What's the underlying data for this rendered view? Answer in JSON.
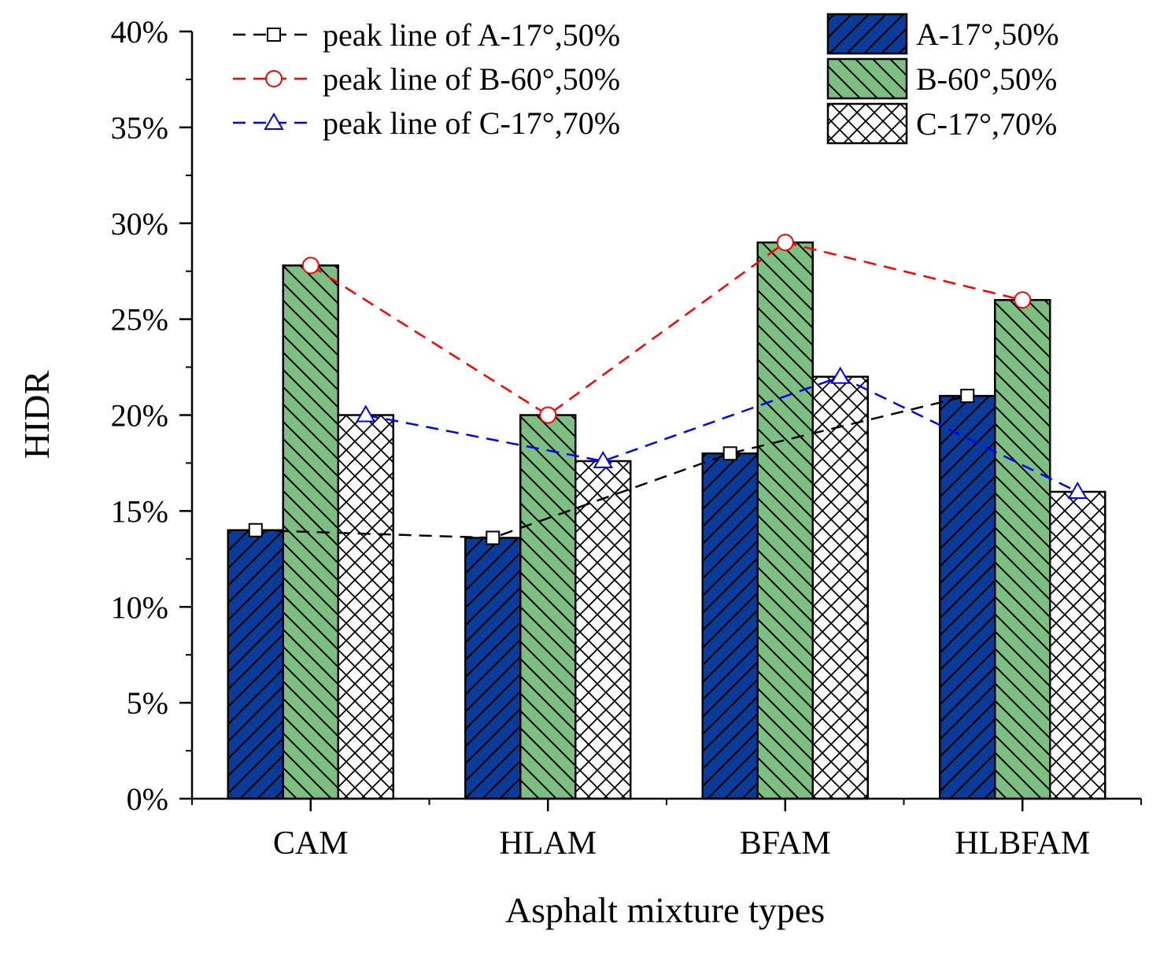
{
  "chart_data": {
    "type": "bar",
    "xlabel": "Asphalt mixture types",
    "ylabel": "HIDR",
    "ylim": [
      0,
      40
    ],
    "ytick_labels": [
      "0%",
      "5%",
      "10%",
      "15%",
      "20%",
      "25%",
      "30%",
      "35%",
      "40%"
    ],
    "categories": [
      "CAM",
      "HLAM",
      "BFAM",
      "HLBFAM"
    ],
    "series": [
      {
        "name": "A-17°,50%",
        "values": [
          14,
          13.6,
          18,
          21
        ],
        "color": "#0a3a9a",
        "pattern": "forward-diagonal"
      },
      {
        "name": "B-60°,50%",
        "values": [
          27.8,
          20,
          29,
          26
        ],
        "color": "#7dbf82",
        "pattern": "back-diagonal"
      },
      {
        "name": "C-17°,70%",
        "values": [
          20,
          17.6,
          22,
          16
        ],
        "color": "#ffffff",
        "pattern": "crosshatch"
      }
    ],
    "peak_lines": [
      {
        "name": "peak line of A-17°,50%",
        "marker": "square",
        "color": "#000000",
        "values": [
          14,
          13.6,
          18,
          21
        ]
      },
      {
        "name": "peak line of B-60°,50%",
        "marker": "circle",
        "color": "#ff0000",
        "values": [
          27.8,
          20,
          29,
          26
        ]
      },
      {
        "name": "peak line of C-17°,70%",
        "marker": "triangle",
        "color": "#0000ff",
        "values": [
          20,
          17.6,
          22,
          16
        ]
      }
    ],
    "legend_position": "top"
  }
}
